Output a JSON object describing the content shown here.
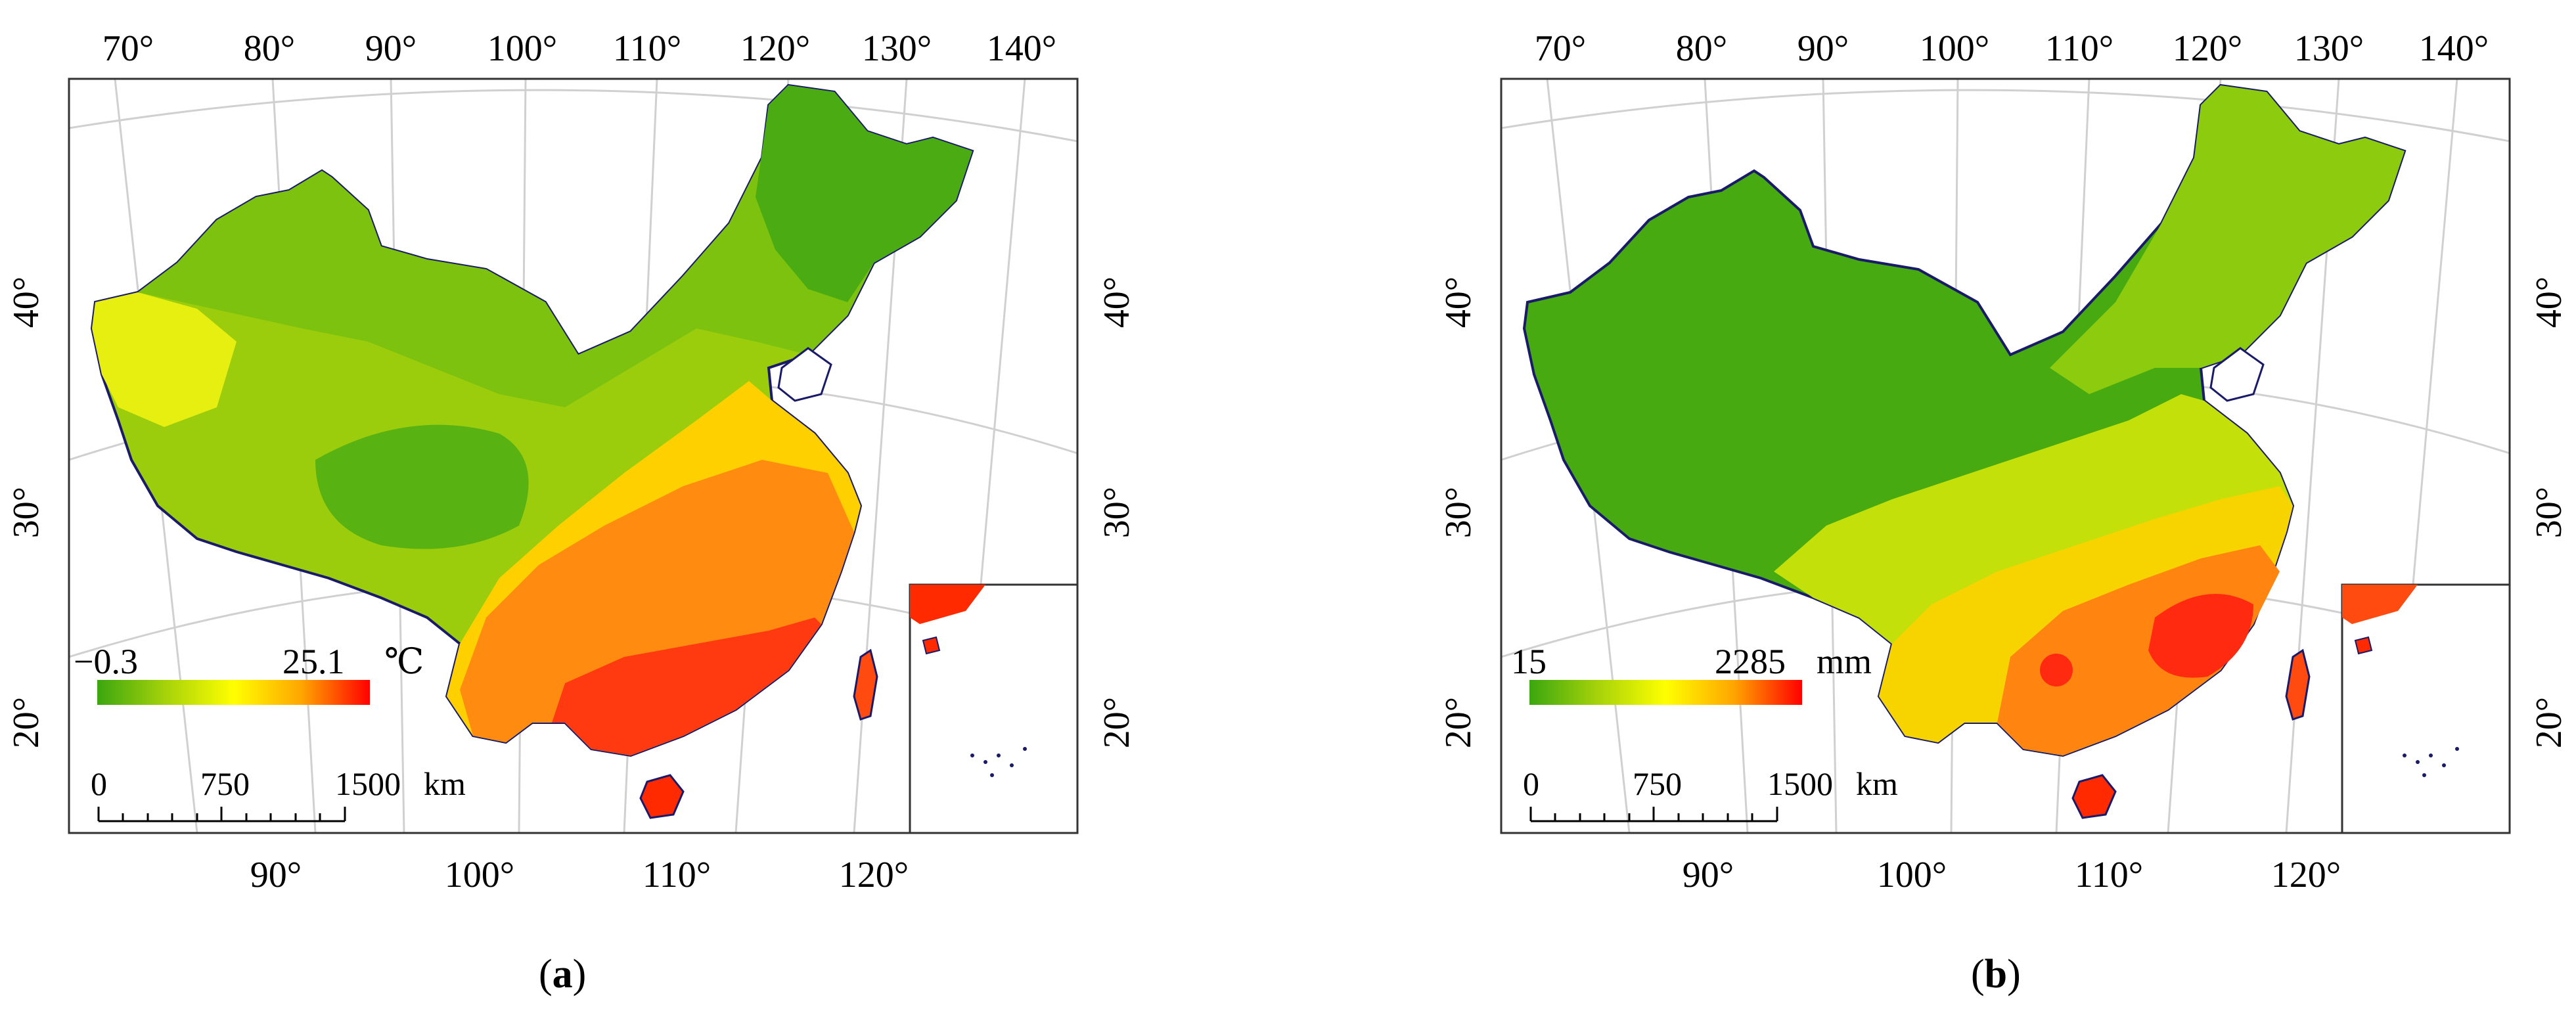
{
  "panels": [
    {
      "id": "a",
      "caption_letter": "a",
      "top_labels": [
        "70°",
        "80°",
        "90°",
        "100°",
        "110°",
        "120°",
        "130°",
        "140°"
      ],
      "bottom_labels": [
        "90°",
        "100°",
        "110°",
        "120°"
      ],
      "left_labels": [
        "40°",
        "30°",
        "20°"
      ],
      "right_labels": [
        "40°",
        "30°",
        "20°"
      ],
      "legend_min": "−0.3",
      "legend_max": "25.1",
      "legend_unit": "℃",
      "legend_colors": [
        "#3ba60f",
        "#a6d20a",
        "#ffff00",
        "#ffa500",
        "#ff0000"
      ],
      "scale_labels": [
        "0",
        "750",
        "1500"
      ],
      "scale_unit": "km",
      "field": "temperature"
    },
    {
      "id": "b",
      "caption_letter": "b",
      "top_labels": [
        "70°",
        "80°",
        "90°",
        "100°",
        "110°",
        "120°",
        "130°",
        "140°"
      ],
      "bottom_labels": [
        "90°",
        "100°",
        "110°",
        "120°"
      ],
      "left_labels": [
        "40°",
        "30°",
        "20°"
      ],
      "right_labels": [
        "40°",
        "30°",
        "20°"
      ],
      "legend_min": "15",
      "legend_max": "2285",
      "legend_unit": "mm",
      "legend_colors": [
        "#3ba60f",
        "#a6d20a",
        "#ffff00",
        "#ffa500",
        "#ff0000"
      ],
      "scale_labels": [
        "0",
        "750",
        "1500"
      ],
      "scale_unit": "km",
      "field": "precipitation"
    }
  ]
}
